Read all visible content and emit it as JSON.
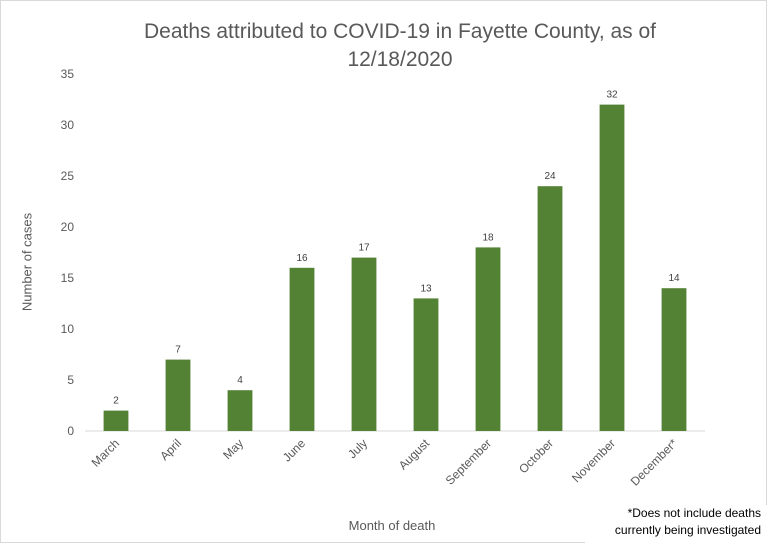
{
  "chart_data": {
    "type": "bar",
    "title": "Deaths attributed to COVID-19 in Fayette County, as of 12/18/2020",
    "xlabel": "Month of death",
    "ylabel": "Number of cases",
    "categories": [
      "March",
      "April",
      "May",
      "June",
      "July",
      "August",
      "September",
      "October",
      "November",
      "December*"
    ],
    "values": [
      2,
      7,
      4,
      16,
      17,
      13,
      18,
      24,
      32,
      14
    ],
    "ylim": [
      0,
      35
    ],
    "yticks": [
      0,
      5,
      10,
      15,
      20,
      25,
      30,
      35
    ],
    "grid": false,
    "data_labels": true,
    "bar_color": "#548235",
    "footnote": "*Does not include deaths currently being investigated"
  }
}
